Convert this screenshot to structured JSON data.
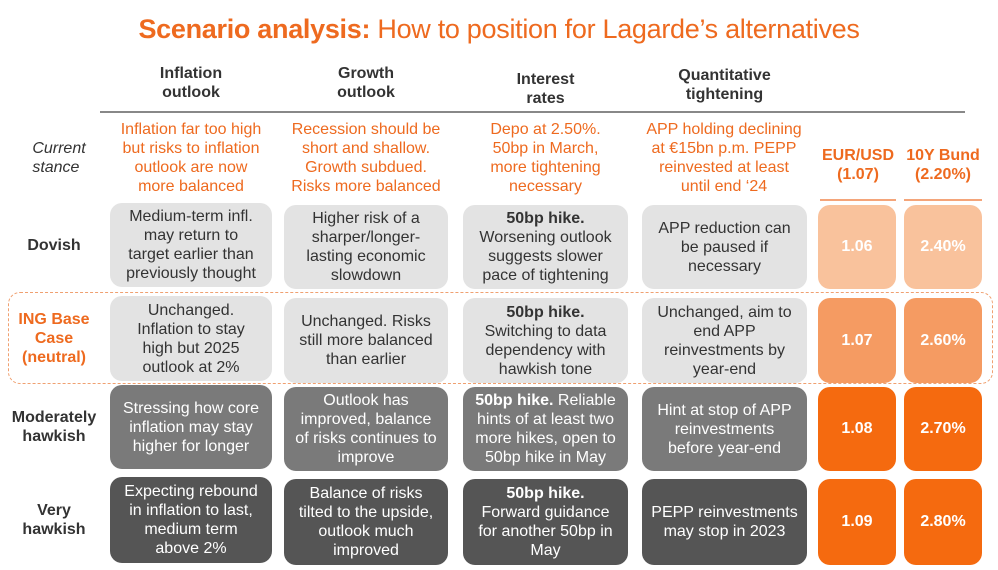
{
  "title": {
    "bold": "Scenario analysis:",
    "rest": " How to position for Lagarde’s alternatives"
  },
  "columns": [
    "Inflation\noutlook",
    "Growth\noutlook",
    "Interest\nrates",
    "Quantitative\ntightening"
  ],
  "market_columns": [
    "EUR/USD\n(1.07)",
    "10Y Bund\n(2.20%)"
  ],
  "current": {
    "label": "Current\nstance",
    "cells": [
      "Inflation far too high\nbut risks to inflation\noutlook are now\nmore balanced",
      "Recession should be\nshort and shallow.\nGrowth subdued.\nRisks more balanced",
      "Depo at 2.50%.\n50bp in March,\nmore tightening\nnecessary",
      "APP holding declining\nat €15bn p.m. PEPP\nreinvested at least\nuntil end ‘24"
    ]
  },
  "rows": [
    {
      "label": "Dovish",
      "inflation": "Medium-term infl.\nmay return to\ntarget earlier than\npreviously thought",
      "growth": "Higher risk of a\nsharper/longer-\nlasting economic\nslowdown",
      "rates_bold": "50bp hike.",
      "rates": "Worsening outlook\nsuggests slower\npace of tightening",
      "qt": "APP reduction can\nbe paused if\nnecessary",
      "eurusd": "1.06",
      "bund": "2.40%"
    },
    {
      "label": "ING Base\nCase\n(neutral)",
      "inflation": "Unchanged.\nInflation to stay\nhigh but 2025\noutlook at 2%",
      "growth": "Unchanged. Risks\nstill more balanced\nthan earlier",
      "rates_bold": "50bp hike.",
      "rates": "Switching to data\ndependency with\nhawkish tone",
      "qt": "Unchanged, aim to\nend APP\nreinvestments by\nyear-end",
      "eurusd": "1.07",
      "bund": "2.60%"
    },
    {
      "label": "Moderately\nhawkish",
      "inflation": "Stressing how core\ninflation may stay\nhigher for longer",
      "growth": "Outlook has\nimproved, balance\nof risks continues to\nimprove",
      "rates_bold": "50bp hike.",
      "rates": " Reliable\nhints of at least two\nmore hikes, open to\n50bp hike in May",
      "qt": "Hint at stop of APP\nreinvestments\nbefore year-end",
      "eurusd": "1.08",
      "bund": "2.70%"
    },
    {
      "label": "Very\nhawkish",
      "inflation": "Expecting rebound\nin inflation to last,\nmedium term\nabove 2%",
      "growth": "Balance of risks\ntilted to the upside,\noutlook much\nimproved",
      "rates_bold": "50bp hike.",
      "rates": "Forward guidance\nfor another 50bp in\nMay",
      "qt": "PEPP reinvestments\nmay stop in 2023",
      "eurusd": "1.09",
      "bund": "2.80%"
    }
  ],
  "colors": {
    "accent": "#ee6a1f",
    "dovish": "#f9c29c",
    "base": "#f59b62",
    "hawkish": "#f56a0f"
  }
}
